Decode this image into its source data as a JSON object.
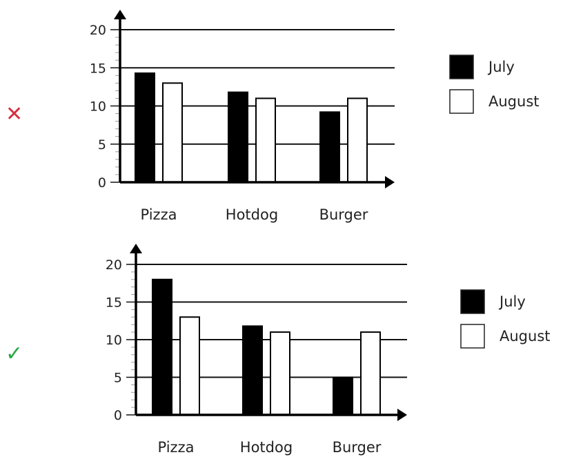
{
  "charts": [
    {
      "mark": "✕",
      "mark_color": "#d62f3f",
      "chart_data": {
        "type": "bar",
        "categories": [
          "Pizza",
          "Hotdog",
          "Burger"
        ],
        "series": [
          {
            "name": "July",
            "values": [
              14.3,
              11.8,
              9.2
            ],
            "fill": "#000000"
          },
          {
            "name": "August",
            "values": [
              13,
              11,
              11
            ],
            "fill": "#ffffff"
          }
        ],
        "yticks": [
          0,
          5,
          10,
          15,
          20
        ],
        "ylim": [
          0,
          20
        ],
        "grid": true,
        "legend": "right"
      }
    },
    {
      "mark": "✓",
      "mark_color": "#27a844",
      "chart_data": {
        "type": "bar",
        "categories": [
          "Pizza",
          "Hotdog",
          "Burger"
        ],
        "series": [
          {
            "name": "July",
            "values": [
              18,
              11.8,
              5
            ],
            "fill": "#000000"
          },
          {
            "name": "August",
            "values": [
              13,
              11,
              11
            ],
            "fill": "#ffffff"
          }
        ],
        "yticks": [
          0,
          5,
          10,
          15,
          20
        ],
        "ylim": [
          0,
          20
        ],
        "grid": true,
        "legend": "right"
      }
    }
  ]
}
